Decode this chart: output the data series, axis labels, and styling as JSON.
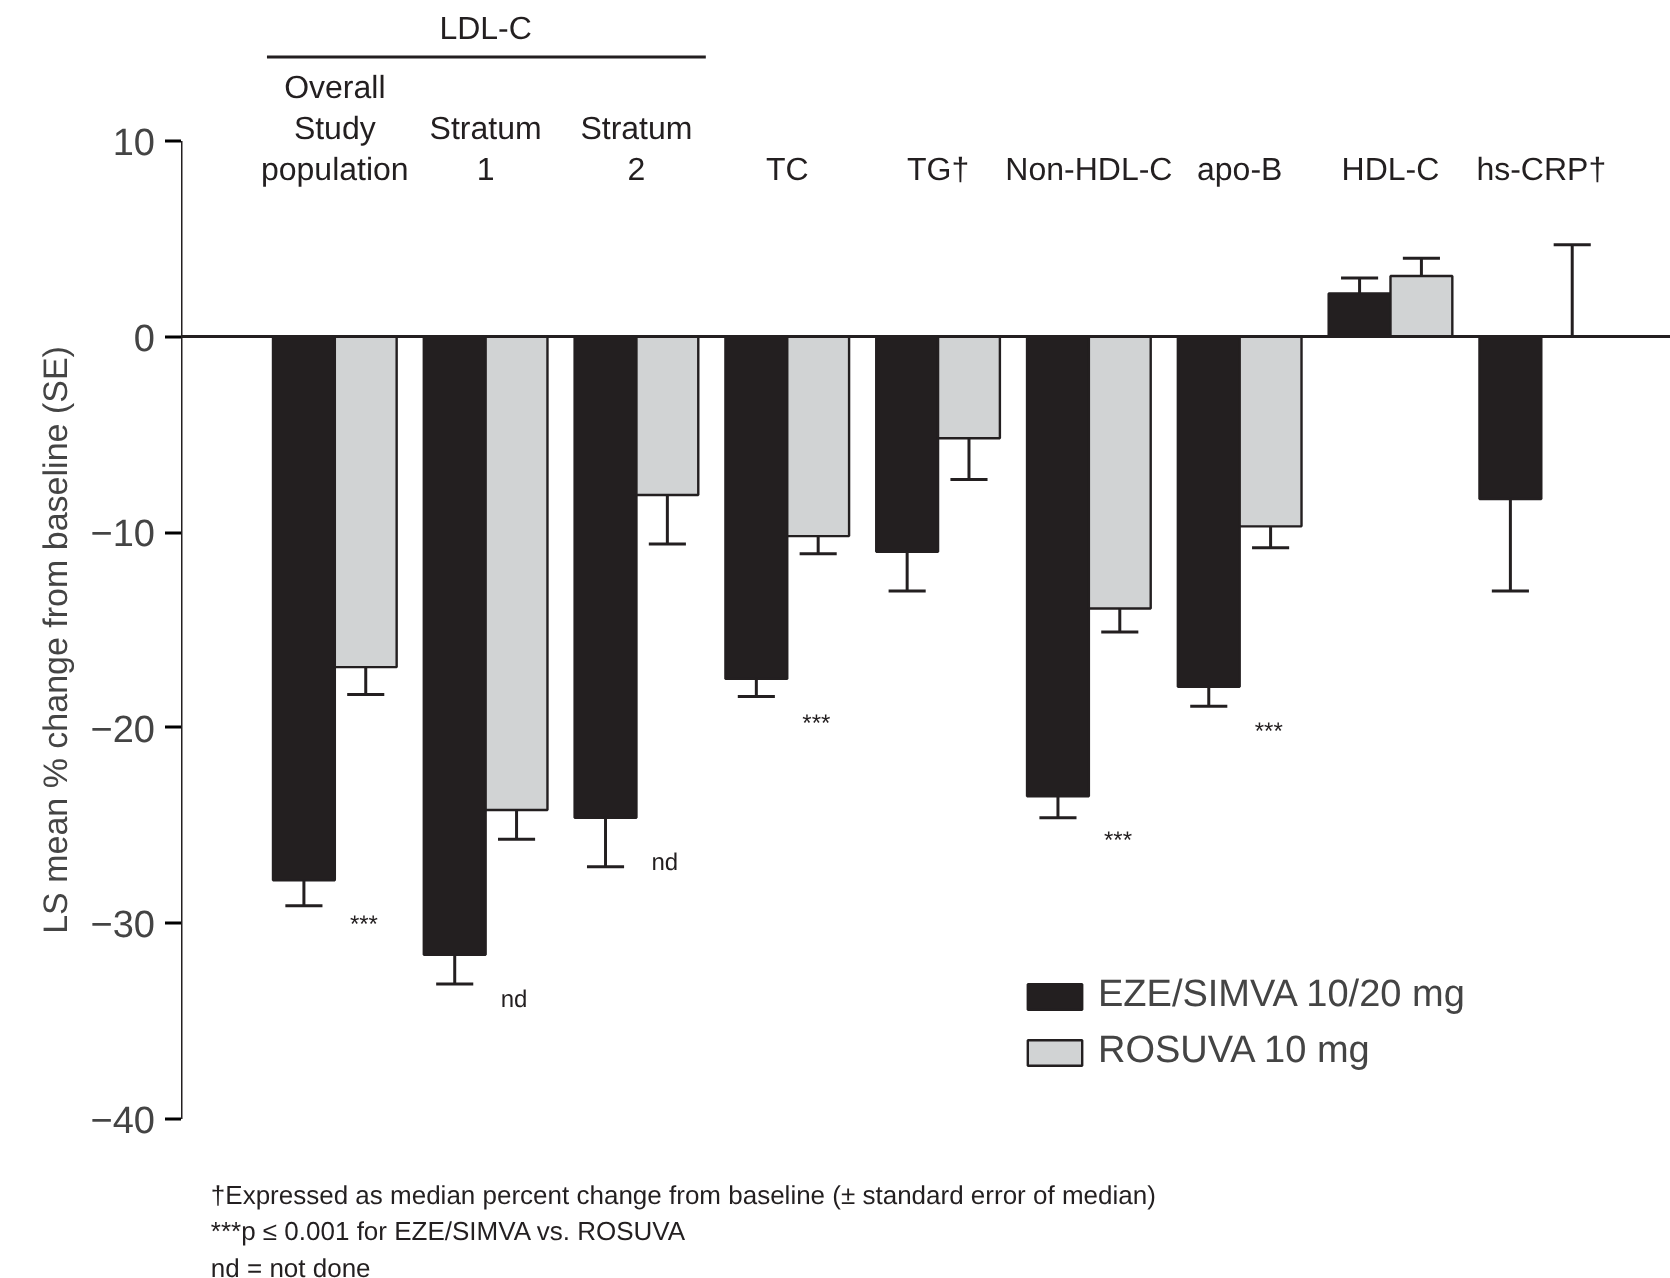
{
  "chart_data": {
    "type": "bar",
    "ylabel": "LS mean % change from baseline (SE)",
    "categories": [
      "Overall\nStudy\npopulation",
      "Stratum\n1",
      "Stratum\n2",
      "TC",
      "TG†",
      "Non-HDL-C",
      "apo-B",
      "HDL-C",
      "hs-CRP†"
    ],
    "series": [
      {
        "name": "EZE/SIMVA 10/20 mg",
        "color": "#231f20",
        "values": [
          -27.8,
          -31.6,
          -24.6,
          -17.5,
          -11.0,
          -23.5,
          -17.9,
          2.2,
          -8.3
        ],
        "errors": [
          [
            -29.1,
            -27.8
          ],
          [
            -33.1,
            -31.6
          ],
          [
            -27.1,
            -24.6
          ],
          [
            -18.4,
            -17.5
          ],
          [
            -13.0,
            -11.0
          ],
          [
            -24.6,
            -23.5
          ],
          [
            -18.9,
            -17.9
          ],
          [
            2.2,
            3.0
          ],
          [
            -13.0,
            -8.3
          ]
        ]
      },
      {
        "name": "ROSUVA 10 mg",
        "color": "#d1d3d4",
        "values": [
          -16.9,
          -24.2,
          -8.1,
          -10.2,
          -5.2,
          -13.9,
          -9.7,
          3.1,
          0
        ],
        "errors": [
          [
            -18.3,
            -16.9
          ],
          [
            -25.7,
            -24.2
          ],
          [
            -10.6,
            -8.1
          ],
          [
            -11.1,
            -10.2
          ],
          [
            -7.3,
            -5.2
          ],
          [
            -15.1,
            -13.9
          ],
          [
            -10.8,
            -9.7
          ],
          [
            3.1,
            4.0
          ],
          [
            0,
            4.7
          ]
        ]
      }
    ],
    "ylim": [
      -40,
      10
    ],
    "yticks": [
      -40,
      -30,
      -20,
      -10,
      0,
      10
    ],
    "ref_lines": [
      {
        "axis": "y",
        "value": 0
      }
    ],
    "legend": "bottom right",
    "annotations": [
      "LDL-C",
      {
        "text": "***",
        "x": "Overall\nStudy\npopulation",
        "y": -27.8
      },
      {
        "text": "nd",
        "x": "Stratum\n1",
        "y": -31.6
      },
      {
        "text": "nd",
        "x": "Stratum\n2",
        "y": -24.6
      },
      {
        "text": "***",
        "x": "TC",
        "y": -17.5
      },
      {
        "text": "***",
        "x": "Non-HDL-C",
        "y": -23.5
      },
      {
        "text": "***",
        "x": "apo-B",
        "y": -17.9
      },
      "†Expressed as median percent change from baseline (± standard error of median)",
      "***p ≤ 0.001 for EZE/SIMVA vs. ROSUVA",
      "nd = not done"
    ]
  }
}
